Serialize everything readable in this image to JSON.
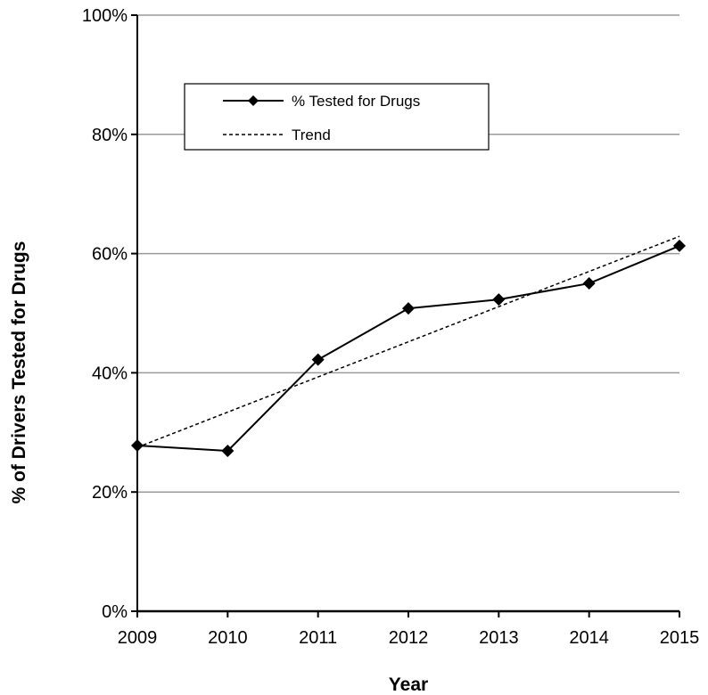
{
  "chart_data": {
    "type": "line",
    "xlabel": "Year",
    "ylabel": "% of Drivers Tested for Drugs",
    "x": [
      2009,
      2010,
      2011,
      2012,
      2013,
      2014,
      2015
    ],
    "x_tick_labels": [
      "2009",
      "2010",
      "2011",
      "2012",
      "2013",
      "2014",
      "2015"
    ],
    "y_ticks": [
      0,
      20,
      40,
      60,
      80,
      100
    ],
    "y_tick_labels": [
      "0%",
      "20%",
      "40%",
      "60%",
      "80%",
      "100%"
    ],
    "xlim": [
      2009,
      2015
    ],
    "ylim": [
      0,
      100
    ],
    "grid": "horizontal",
    "legend_position": "top-left",
    "series": [
      {
        "name": "% Tested for Drugs",
        "style": "solid line with diamond markers",
        "values": [
          27.8,
          26.9,
          42.2,
          50.8,
          52.3,
          55.0,
          61.3
        ]
      },
      {
        "name": "Trend",
        "style": "dashed line",
        "values": [
          27.5,
          33.4,
          39.3,
          45.2,
          51.1,
          57.0,
          62.9
        ]
      }
    ]
  }
}
